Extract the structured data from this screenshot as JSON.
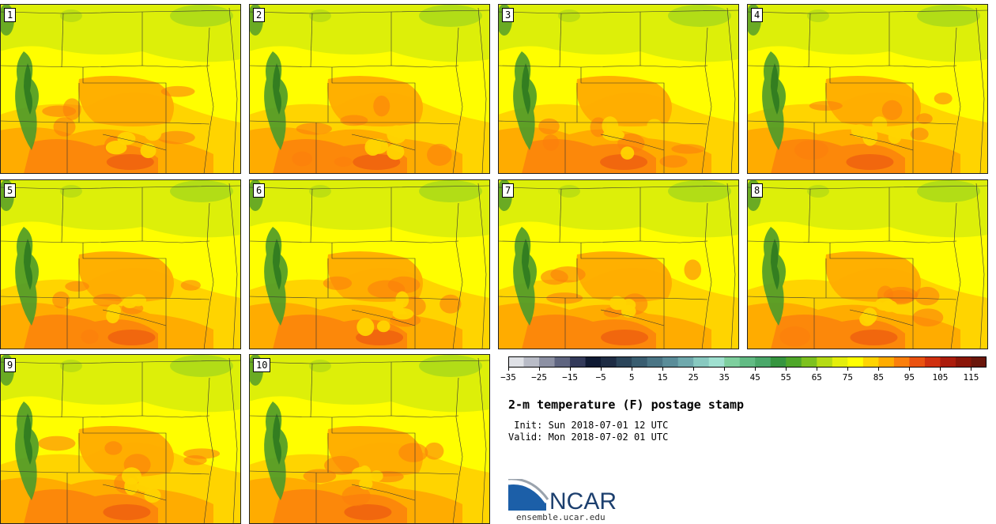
{
  "panels": [
    {
      "label": "1"
    },
    {
      "label": "2"
    },
    {
      "label": "3"
    },
    {
      "label": "4"
    },
    {
      "label": "5"
    },
    {
      "label": "6"
    },
    {
      "label": "7"
    },
    {
      "label": "8"
    },
    {
      "label": "9"
    },
    {
      "label": "10"
    }
  ],
  "colorbar": {
    "colors": [
      "#dfe1e6",
      "#b9bcc7",
      "#8c90a3",
      "#5f6580",
      "#333a5a",
      "#0f1a33",
      "#1e2c44",
      "#2b455a",
      "#395d70",
      "#4a7585",
      "#5a8d99",
      "#6fa9ad",
      "#88c9c0",
      "#9fe0d0",
      "#7ecf9e",
      "#62bb84",
      "#4ba86a",
      "#36953f",
      "#4fa72a",
      "#7dc11f",
      "#b5db14",
      "#e4ee0c",
      "#fffe00",
      "#ffd400",
      "#ffac00",
      "#fb7f0c",
      "#ea5210",
      "#d0300f",
      "#ac1c0c",
      "#8a1508",
      "#6a160b"
    ],
    "tick_labels": [
      "−35",
      "−25",
      "−15",
      "−5",
      "5",
      "15",
      "25",
      "35",
      "45",
      "55",
      "65",
      "75",
      "85",
      "95",
      "105",
      "115"
    ]
  },
  "title": "2-m temperature (F) postage stamp",
  "init": " Init: Sun 2018-07-01 12 UTC",
  "valid": "Valid: Mon 2018-07-02 01 UTC",
  "logo": {
    "text": "NCAR",
    "site": "ensemble.ucar.edu",
    "color": "#1c3f6e"
  },
  "map_colors": {
    "mountain_green": "#4d9a2a",
    "dark_green": "#2f7a20",
    "yellow_green": "#d7ec0a",
    "yellow": "#fffe00",
    "light_orange": "#ffd400",
    "orange": "#ffac00",
    "deep_orange": "#fb7f0c",
    "red_orange": "#ea5210"
  }
}
